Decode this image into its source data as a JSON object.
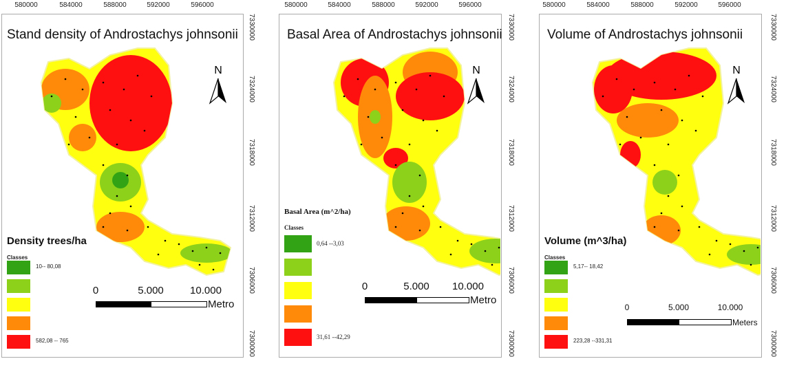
{
  "colors": {
    "class1": "#33a316",
    "class2": "#8dd11a",
    "class3": "#ffff10",
    "class4": "#ff8a0a",
    "class5": "#ff1010",
    "sample_point": "#000000"
  },
  "panels": [
    {
      "title": "Stand density of Androstachys johnsonii",
      "x_ticks": [
        "580000",
        "584000",
        "588000",
        "592000",
        "596000"
      ],
      "y_ticks": [
        "7330000",
        "7324000",
        "7318000",
        "7312000",
        "7306000",
        "7300000"
      ],
      "north_label": "N",
      "legend": {
        "title": "Density trees/ha",
        "classes_label": "Classes",
        "items": [
          "10-- 80,08",
          "",
          "",
          "",
          "582,08 -- 765"
        ]
      },
      "scale": {
        "labels": [
          "0",
          "5.000",
          "10.000"
        ],
        "unit": "Metro"
      }
    },
    {
      "title": "Basal Area of Androstachys johnsonii",
      "x_ticks": [
        "580000",
        "584000",
        "588000",
        "592000",
        "596000"
      ],
      "y_ticks": [
        "7330000",
        "7324000",
        "7318000",
        "7312000",
        "7306000",
        "7300000"
      ],
      "north_label": "N",
      "legend": {
        "title": "Basal Area (m^2/ha)",
        "classes_label": "Classes",
        "items": [
          "0,64 --3,03",
          "",
          "",
          "",
          "31,61 --42,29"
        ]
      },
      "scale": {
        "labels": [
          "0",
          "5.000",
          "10.000"
        ],
        "unit": "Metro"
      }
    },
    {
      "title": "Volume of Androstachys johnsonii",
      "x_ticks": [
        "580000",
        "584000",
        "588000",
        "592000",
        "596000"
      ],
      "y_ticks": [
        "7330000",
        "7324000",
        "7318000",
        "7312000",
        "7306000",
        "7300000"
      ],
      "north_label": "N",
      "legend": {
        "title": "Volume (m^3/ha)",
        "classes_label": "Classes",
        "items": [
          "5,17-- 18,42",
          "",
          "",
          "",
          "223,28 --331,31"
        ]
      },
      "scale": {
        "labels": [
          "0",
          "5.000",
          "10.000"
        ],
        "unit": "Meters"
      }
    }
  ]
}
